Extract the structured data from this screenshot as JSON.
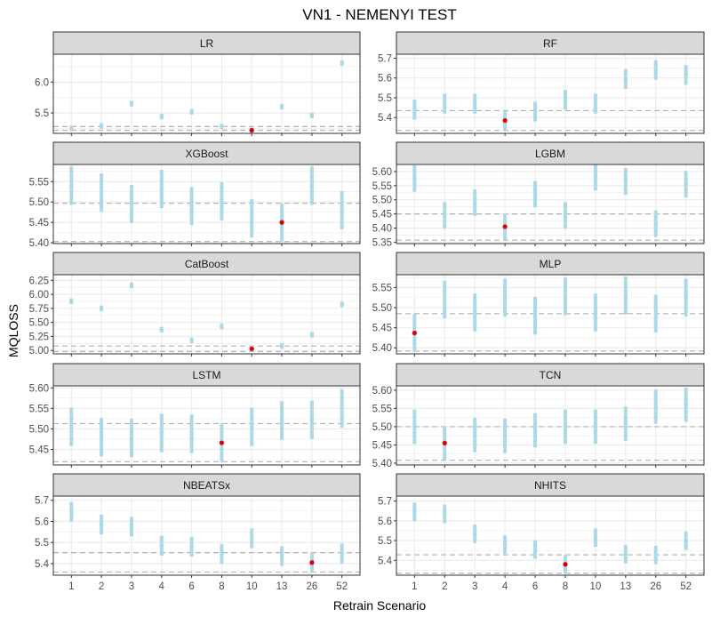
{
  "title": "VN1 - NEMENYI TEST",
  "xlabel": "Retrain Scenario",
  "ylabel": "MQLOSS",
  "colors": {
    "strip_fill": "#d9d9d9",
    "strip_border": "#333333",
    "grid": "#ebebeb",
    "interval": "#add8e6",
    "best_point": "#dd0000",
    "ref_line": "#b3b3b3",
    "panel_border": "#333333"
  },
  "chart_data": {
    "type": "errorbar",
    "categories": [
      "1",
      "2",
      "3",
      "4",
      "6",
      "8",
      "10",
      "13",
      "26",
      "52"
    ],
    "panels": [
      {
        "name": "LR",
        "ylim": [
          5.17,
          6.45
        ],
        "yticks": [
          5.5,
          6.0
        ],
        "ytick_labels": [
          "5.5",
          "6.0"
        ],
        "centers": [
          5.25,
          5.29,
          5.65,
          5.44,
          5.52,
          5.28,
          5.22,
          5.6,
          5.46,
          6.31
        ],
        "half_width": 0.045,
        "best_index": 6,
        "ref_lines": [
          5.22,
          5.28
        ]
      },
      {
        "name": "RF",
        "ylim": [
          5.32,
          5.72
        ],
        "yticks": [
          5.4,
          5.5,
          5.6,
          5.7
        ],
        "ytick_labels": [
          "5.4",
          "5.5",
          "5.6",
          "5.7"
        ],
        "centers": [
          5.44,
          5.47,
          5.47,
          5.385,
          5.43,
          5.49,
          5.47,
          5.595,
          5.64,
          5.615
        ],
        "half_width": 0.05,
        "best_index": 3,
        "ref_lines": [
          5.335,
          5.435
        ]
      },
      {
        "name": "XGBoost",
        "ylim": [
          5.398,
          5.592
        ],
        "yticks": [
          5.4,
          5.45,
          5.5,
          5.55
        ],
        "ytick_labels": [
          "5.40",
          "5.45",
          "5.50",
          "5.55"
        ],
        "centers": [
          5.54,
          5.523,
          5.495,
          5.532,
          5.49,
          5.502,
          5.46,
          5.45,
          5.54,
          5.48
        ],
        "half_width": 0.047,
        "best_index": 7,
        "ref_lines": [
          5.403,
          5.497
        ]
      },
      {
        "name": "LGBM",
        "ylim": [
          5.345,
          5.625
        ],
        "yticks": [
          5.35,
          5.4,
          5.45,
          5.5,
          5.55,
          5.6
        ],
        "ytick_labels": [
          "5.35",
          "5.40",
          "5.45",
          "5.50",
          "5.55",
          "5.60"
        ],
        "centers": [
          5.575,
          5.445,
          5.49,
          5.405,
          5.52,
          5.445,
          5.58,
          5.565,
          5.415,
          5.555
        ],
        "half_width": 0.047,
        "best_index": 3,
        "ref_lines": [
          5.357,
          5.45
        ]
      },
      {
        "name": "CatBoost",
        "ylim": [
          4.94,
          6.35
        ],
        "yticks": [
          5.0,
          5.25,
          5.5,
          5.75,
          6.0,
          6.25
        ],
        "ytick_labels": [
          "5.00",
          "5.25",
          "5.50",
          "5.75",
          "6.00",
          "6.25"
        ],
        "centers": [
          5.88,
          5.75,
          6.16,
          5.37,
          5.18,
          5.43,
          5.03,
          5.08,
          5.28,
          5.82
        ],
        "half_width": 0.05,
        "best_index": 6,
        "ref_lines": [
          4.98,
          5.08
        ]
      },
      {
        "name": "MLP",
        "ylim": [
          5.385,
          5.582
        ],
        "yticks": [
          5.4,
          5.45,
          5.5,
          5.55
        ],
        "ytick_labels": [
          "5.40",
          "5.45",
          "5.50",
          "5.55"
        ],
        "centers": [
          5.437,
          5.52,
          5.488,
          5.525,
          5.48,
          5.528,
          5.488,
          5.53,
          5.485,
          5.525
        ],
        "half_width": 0.047,
        "best_index": 0,
        "ref_lines": [
          5.392,
          5.485
        ]
      },
      {
        "name": "LSTM",
        "ylim": [
          5.412,
          5.605
        ],
        "yticks": [
          5.45,
          5.5,
          5.55,
          5.6
        ],
        "ytick_labels": [
          "5.45",
          "5.50",
          "5.55",
          "5.60"
        ],
        "centers": [
          5.505,
          5.48,
          5.478,
          5.49,
          5.488,
          5.466,
          5.505,
          5.52,
          5.522,
          5.55
        ],
        "half_width": 0.047,
        "best_index": 5,
        "ref_lines": [
          5.42,
          5.513
        ]
      },
      {
        "name": "TCN",
        "ylim": [
          5.395,
          5.612
        ],
        "yticks": [
          5.4,
          5.45,
          5.5,
          5.55,
          5.6
        ],
        "ytick_labels": [
          "5.40",
          "5.45",
          "5.50",
          "5.55",
          "5.60"
        ],
        "centers": [
          5.5,
          5.455,
          5.477,
          5.475,
          5.49,
          5.5,
          5.5,
          5.508,
          5.555,
          5.56
        ],
        "half_width": 0.047,
        "best_index": 1,
        "ref_lines": [
          5.408,
          5.5
        ]
      },
      {
        "name": "NBEATSx",
        "ylim": [
          5.345,
          5.72
        ],
        "yticks": [
          5.4,
          5.5,
          5.6,
          5.7
        ],
        "ytick_labels": [
          "5.4",
          "5.5",
          "5.6",
          "5.7"
        ],
        "centers": [
          5.645,
          5.585,
          5.575,
          5.485,
          5.48,
          5.445,
          5.52,
          5.435,
          5.405,
          5.448
        ],
        "half_width": 0.047,
        "best_index": 8,
        "ref_lines": [
          5.36,
          5.452
        ]
      },
      {
        "name": "NHITS",
        "ylim": [
          5.325,
          5.725
        ],
        "yticks": [
          5.4,
          5.5,
          5.6,
          5.7
        ],
        "ytick_labels": [
          "5.4",
          "5.5",
          "5.6",
          "5.7"
        ],
        "centers": [
          5.645,
          5.635,
          5.535,
          5.48,
          5.455,
          5.38,
          5.515,
          5.432,
          5.428,
          5.5
        ],
        "half_width": 0.047,
        "best_index": 5,
        "ref_lines": [
          5.335,
          5.428
        ]
      }
    ]
  }
}
